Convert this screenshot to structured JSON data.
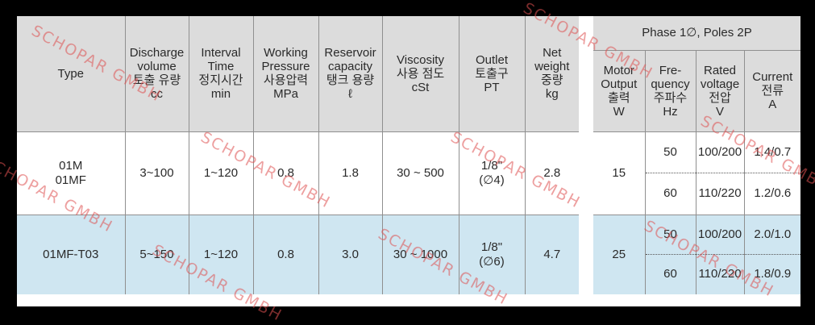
{
  "headers": {
    "type": "Type",
    "discharge": [
      "Discharge",
      "volume",
      "토출 유량",
      "cc"
    ],
    "interval": [
      "Interval",
      "Time",
      "정지시간",
      "min"
    ],
    "pressure": [
      "Working",
      "Pressure",
      "사용압력",
      "MPa"
    ],
    "reservoir": [
      "Reservoir",
      "capacity",
      "탱크 용량",
      "ℓ"
    ],
    "viscosity": [
      "Viscosity",
      "사용 점도",
      "cSt"
    ],
    "outlet": [
      "Outlet",
      "토출구",
      "PT"
    ],
    "weight": [
      "Net",
      "weight",
      "중량",
      "kg"
    ],
    "phase": "Phase 1∅, Poles 2P",
    "motor": [
      "Motor",
      "Output",
      "출력",
      "W"
    ],
    "freq": [
      "Fre-",
      "quency",
      "주파수",
      "Hz"
    ],
    "voltage": [
      "Rated",
      "voltage",
      "전압",
      "V"
    ],
    "current": [
      "Current",
      "전류",
      "A"
    ]
  },
  "rows": [
    {
      "type": [
        "01M",
        "01MF"
      ],
      "discharge": "3~100",
      "interval": "1~120",
      "pressure": "0.8",
      "reservoir": "1.8",
      "viscosity": "30 ~ 500",
      "outlet": [
        "1/8\"",
        "(∅4)"
      ],
      "weight": "2.8",
      "motor": "15",
      "freq": [
        "50",
        "60"
      ],
      "voltage": [
        "100/200",
        "110/220"
      ],
      "current": [
        "1.4/0.7",
        "1.2/0.6"
      ]
    },
    {
      "type": [
        "01MF-T03"
      ],
      "discharge": "5~150",
      "interval": "1~120",
      "pressure": "0.8",
      "reservoir": "3.0",
      "viscosity": "30 ~ 1000",
      "outlet": [
        "1/8\"",
        "(∅6)"
      ],
      "weight": "4.7",
      "motor": "25",
      "freq": [
        "50",
        "60"
      ],
      "voltage": [
        "100/200",
        "110/220"
      ],
      "current": [
        "2.0/1.0",
        "1.8/0.9"
      ]
    }
  ],
  "watermark": "SCHOPAR GMBH"
}
